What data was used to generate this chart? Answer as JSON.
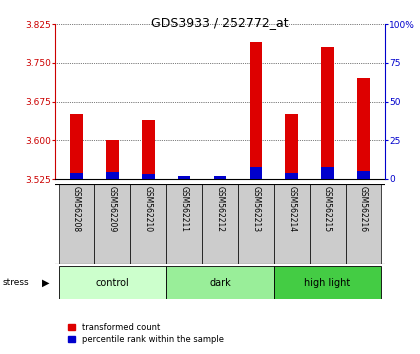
{
  "title": "GDS3933 / 252772_at",
  "samples": [
    "GSM562208",
    "GSM562209",
    "GSM562210",
    "GSM562211",
    "GSM562212",
    "GSM562213",
    "GSM562214",
    "GSM562215",
    "GSM562216"
  ],
  "red_values": [
    3.65,
    3.6,
    3.64,
    3.526,
    3.526,
    3.79,
    3.65,
    3.78,
    3.72
  ],
  "blue_values": [
    4.0,
    4.5,
    3.0,
    2.0,
    2.0,
    8.0,
    4.0,
    8.0,
    5.0
  ],
  "ymin": 3.525,
  "ymax": 3.825,
  "y2min": 0,
  "y2max": 100,
  "yticks": [
    3.525,
    3.6,
    3.675,
    3.75,
    3.825
  ],
  "y2ticks": [
    0,
    25,
    50,
    75,
    100
  ],
  "groups": [
    {
      "label": "control",
      "start": 0,
      "end": 2,
      "color": "#ccffcc"
    },
    {
      "label": "dark",
      "start": 3,
      "end": 5,
      "color": "#99ee99"
    },
    {
      "label": "high light",
      "start": 6,
      "end": 8,
      "color": "#44cc44"
    }
  ],
  "stress_label": "stress",
  "bar_width": 0.35,
  "red_color": "#dd0000",
  "blue_color": "#0000cc",
  "legend_red": "transformed count",
  "legend_blue": "percentile rank within the sample",
  "title_color": "black",
  "left_axis_color": "#cc0000",
  "right_axis_color": "#0000cc",
  "background_color": "white",
  "plot_bg": "white",
  "grid_color": "black",
  "tick_label_bg": "#cccccc"
}
